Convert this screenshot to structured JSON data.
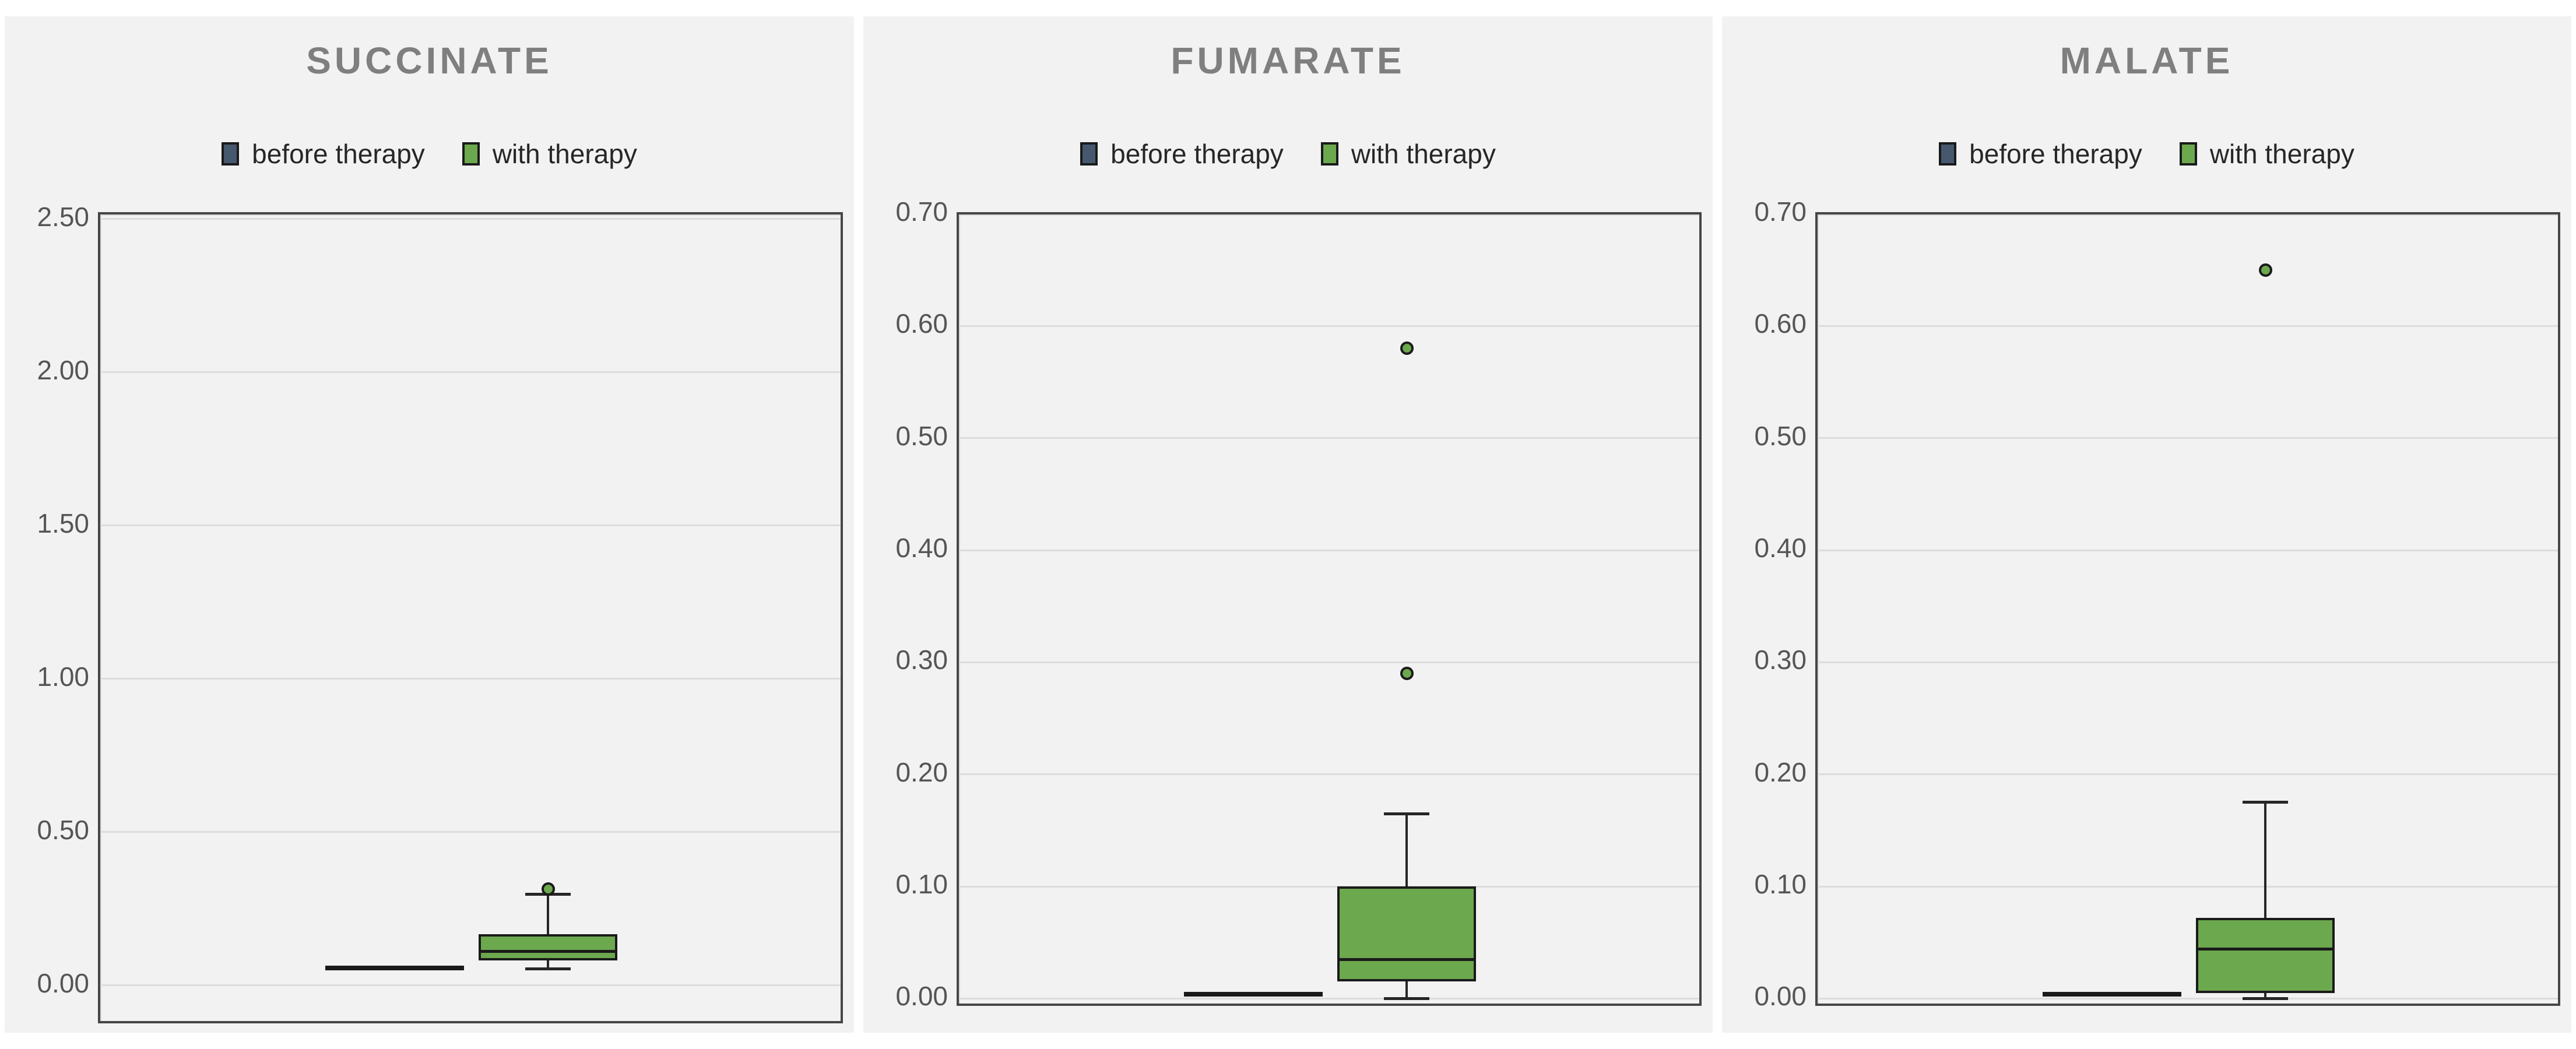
{
  "page": {
    "background": "#ffffff",
    "panel_background": "#f2f2f2"
  },
  "colors": {
    "before_fill": "#46586E",
    "with_fill": "#6CA84E",
    "box_border": "#1a1a1a",
    "gridline": "#dcdcdc",
    "plot_border": "#464646",
    "title_text": "#7f7f7f",
    "tick_text": "#555555",
    "legend_text": "#262626"
  },
  "legend": {
    "before_label": "before therapy",
    "with_label": "with therapy"
  },
  "chart_data": [
    {
      "type": "box",
      "title": "SUCCINATE",
      "categories": [
        "before therapy",
        "with therapy"
      ],
      "legend_position": "top",
      "grid": true,
      "ytick_labels": [
        "0.00",
        "0.50",
        "1.00",
        "1.50",
        "2.00",
        "2.50"
      ],
      "ytick_values": [
        0,
        0.5,
        1.0,
        1.5,
        2.0,
        2.5
      ],
      "ylim": [
        -0.116,
        2.515
      ],
      "series": [
        {
          "name": "before therapy",
          "min": 0.057,
          "q1": 0.057,
          "median": 0.057,
          "q3": 0.057,
          "max": 0.057,
          "outliers": []
        },
        {
          "name": "with therapy",
          "min": 0.055,
          "q1": 0.082,
          "median": 0.112,
          "q3": 0.168,
          "max": 0.297,
          "outliers": [
            0.315
          ]
        }
      ]
    },
    {
      "type": "box",
      "title": "FUMARATE",
      "categories": [
        "before therapy",
        "with therapy"
      ],
      "legend_position": "top",
      "grid": true,
      "ytick_labels": [
        "0.00",
        "0.10",
        "0.20",
        "0.30",
        "0.40",
        "0.50",
        "0.60",
        "0.70"
      ],
      "ytick_values": [
        0,
        0.1,
        0.2,
        0.3,
        0.4,
        0.5,
        0.6,
        0.7
      ],
      "ylim": [
        -0.0045,
        0.6995
      ],
      "series": [
        {
          "name": "before therapy",
          "min": 0.004,
          "q1": 0.004,
          "median": 0.004,
          "q3": 0.004,
          "max": 0.004,
          "outliers": []
        },
        {
          "name": "with therapy",
          "min": 0.0,
          "q1": 0.015,
          "median": 0.035,
          "q3": 0.1,
          "max": 0.165,
          "outliers": [
            0.29,
            0.58
          ]
        }
      ]
    },
    {
      "type": "box",
      "title": "MALATE",
      "categories": [
        "before therapy",
        "with therapy"
      ],
      "legend_position": "top",
      "grid": true,
      "ytick_labels": [
        "0.00",
        "0.10",
        "0.20",
        "0.30",
        "0.40",
        "0.50",
        "0.60",
        "0.70"
      ],
      "ytick_values": [
        0,
        0.1,
        0.2,
        0.3,
        0.4,
        0.5,
        0.6,
        0.7
      ],
      "ylim": [
        -0.0045,
        0.6995
      ],
      "series": [
        {
          "name": "before therapy",
          "min": 0.004,
          "q1": 0.004,
          "median": 0.004,
          "q3": 0.004,
          "max": 0.004,
          "outliers": []
        },
        {
          "name": "with therapy",
          "min": 0.0,
          "q1": 0.005,
          "median": 0.044,
          "q3": 0.072,
          "max": 0.175,
          "outliers": [
            0.65
          ]
        }
      ]
    }
  ]
}
